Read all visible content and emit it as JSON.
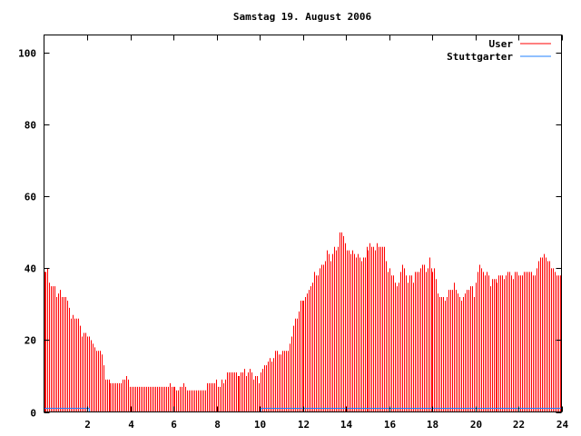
{
  "chart_data": {
    "type": "bar",
    "style": "impulses",
    "title": "Samstag 19. August 2006",
    "xlabel": "",
    "ylabel": "",
    "xlim": [
      0,
      24
    ],
    "ylim": [
      0,
      105
    ],
    "xticks": [
      2,
      4,
      6,
      8,
      10,
      12,
      14,
      16,
      18,
      20,
      22,
      24
    ],
    "yticks": [
      0,
      20,
      40,
      60,
      80,
      100
    ],
    "grid": false,
    "legend": "top-right",
    "series": [
      {
        "name": "User",
        "color": "#ff0000",
        "values": [
          39,
          39,
          40,
          36,
          35,
          35,
          35,
          32,
          33,
          34,
          32,
          32,
          32,
          31,
          29,
          26,
          27,
          26,
          26,
          26,
          24,
          21,
          22,
          22,
          21,
          21,
          20,
          19,
          18,
          17,
          17,
          17,
          16,
          13,
          9,
          9,
          9,
          8,
          8,
          8,
          8,
          8,
          8,
          8,
          9,
          9,
          10,
          9,
          7,
          7,
          7,
          7,
          7,
          7,
          7,
          7,
          7,
          7,
          7,
          7,
          7,
          7,
          7,
          7,
          7,
          7,
          7,
          7,
          7,
          7,
          8,
          7,
          7,
          7,
          6,
          6,
          7,
          7,
          8,
          7,
          6,
          6,
          6,
          6,
          6,
          6,
          6,
          6,
          6,
          6,
          6,
          8,
          8,
          8,
          8,
          8,
          9,
          7,
          7,
          9,
          8,
          9,
          11,
          11,
          11,
          11,
          11,
          11,
          10,
          10,
          11,
          11,
          12,
          10,
          11,
          12,
          11,
          9,
          10,
          10,
          8,
          11,
          12,
          13,
          13,
          14,
          15,
          14,
          15,
          17,
          17,
          16,
          16,
          17,
          17,
          17,
          17,
          19,
          21,
          24,
          26,
          26,
          28,
          31,
          31,
          31,
          32,
          33,
          34,
          35,
          36,
          39,
          38,
          38,
          40,
          41,
          41,
          42,
          45,
          44,
          42,
          44,
          46,
          45,
          46,
          50,
          50,
          49,
          47,
          45,
          45,
          44,
          45,
          44,
          43,
          44,
          43,
          42,
          43,
          43,
          46,
          45,
          47,
          46,
          46,
          45,
          47,
          46,
          46,
          46,
          46,
          42,
          39,
          40,
          38,
          38,
          36,
          35,
          36,
          39,
          41,
          40,
          38,
          36,
          38,
          38,
          36,
          39,
          39,
          39,
          40,
          41,
          41,
          39,
          40,
          43,
          40,
          39,
          40,
          37,
          33,
          32,
          32,
          32,
          31,
          32,
          34,
          34,
          34,
          36,
          34,
          33,
          32,
          31,
          32,
          33,
          34,
          34,
          35,
          35,
          32,
          36,
          39,
          41,
          40,
          39,
          38,
          39,
          38,
          35,
          37,
          37,
          37,
          36,
          38,
          38,
          38,
          37,
          38,
          39,
          39,
          38,
          37,
          39,
          39,
          38,
          38,
          38,
          39,
          39,
          39,
          39,
          39,
          38,
          38,
          40,
          42,
          43,
          43,
          44,
          43,
          42,
          42,
          40,
          40,
          39,
          38,
          38,
          38
        ]
      },
      {
        "name": "Stuttgarter",
        "color": "#2080ff",
        "x": [
          0,
          2.1,
          2.1,
          10.05,
          10.05,
          24
        ],
        "y": [
          1,
          1,
          0,
          0,
          1,
          1
        ]
      }
    ]
  }
}
